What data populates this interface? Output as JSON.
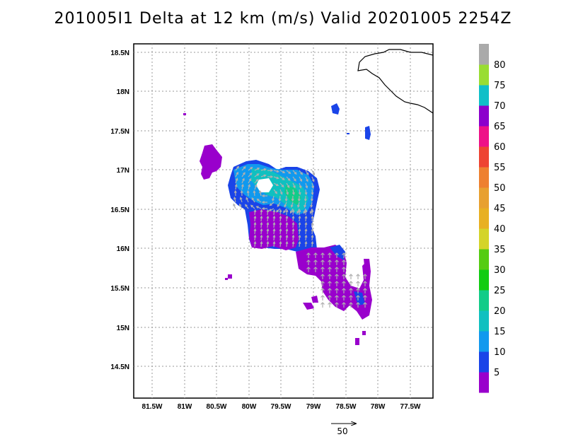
{
  "title": "201005I1 Delta at 12 km (m/s) Valid 20201005 2254Z",
  "map": {
    "lon_labels": [
      "81.5W",
      "81W",
      "80.5W",
      "80W",
      "79.5W",
      "79W",
      "78.5W",
      "78W",
      "77.5W"
    ],
    "lat_labels": [
      "18.5N",
      "18N",
      "17.5N",
      "17N",
      "16.5N",
      "16N",
      "15.5N",
      "15N",
      "14.5N"
    ],
    "grid": true
  },
  "colorbar": {
    "labels": [
      "5",
      "10",
      "15",
      "20",
      "25",
      "30",
      "35",
      "40",
      "45",
      "50",
      "55",
      "60",
      "65",
      "70",
      "75",
      "80"
    ],
    "colors": [
      "#9900cc",
      "#1a44e8",
      "#1199ee",
      "#10c0c0",
      "#12cc88",
      "#11cc11",
      "#55cc11",
      "#d4d42a",
      "#e8b022",
      "#e8a030",
      "#ee8030",
      "#ee4433",
      "#ee1188",
      "#8c00cc",
      "#10bfc8",
      "#99dd33",
      "#aaaaaa"
    ]
  },
  "reference_vector": {
    "label": "50"
  },
  "colors": {
    "purple": "#9900cc",
    "blue": "#1a44e8",
    "lightblue": "#1199ee",
    "cyan": "#10c0c0",
    "teal": "#12cc88",
    "arrow": "#b0b0b0",
    "coast": "#000000"
  }
}
